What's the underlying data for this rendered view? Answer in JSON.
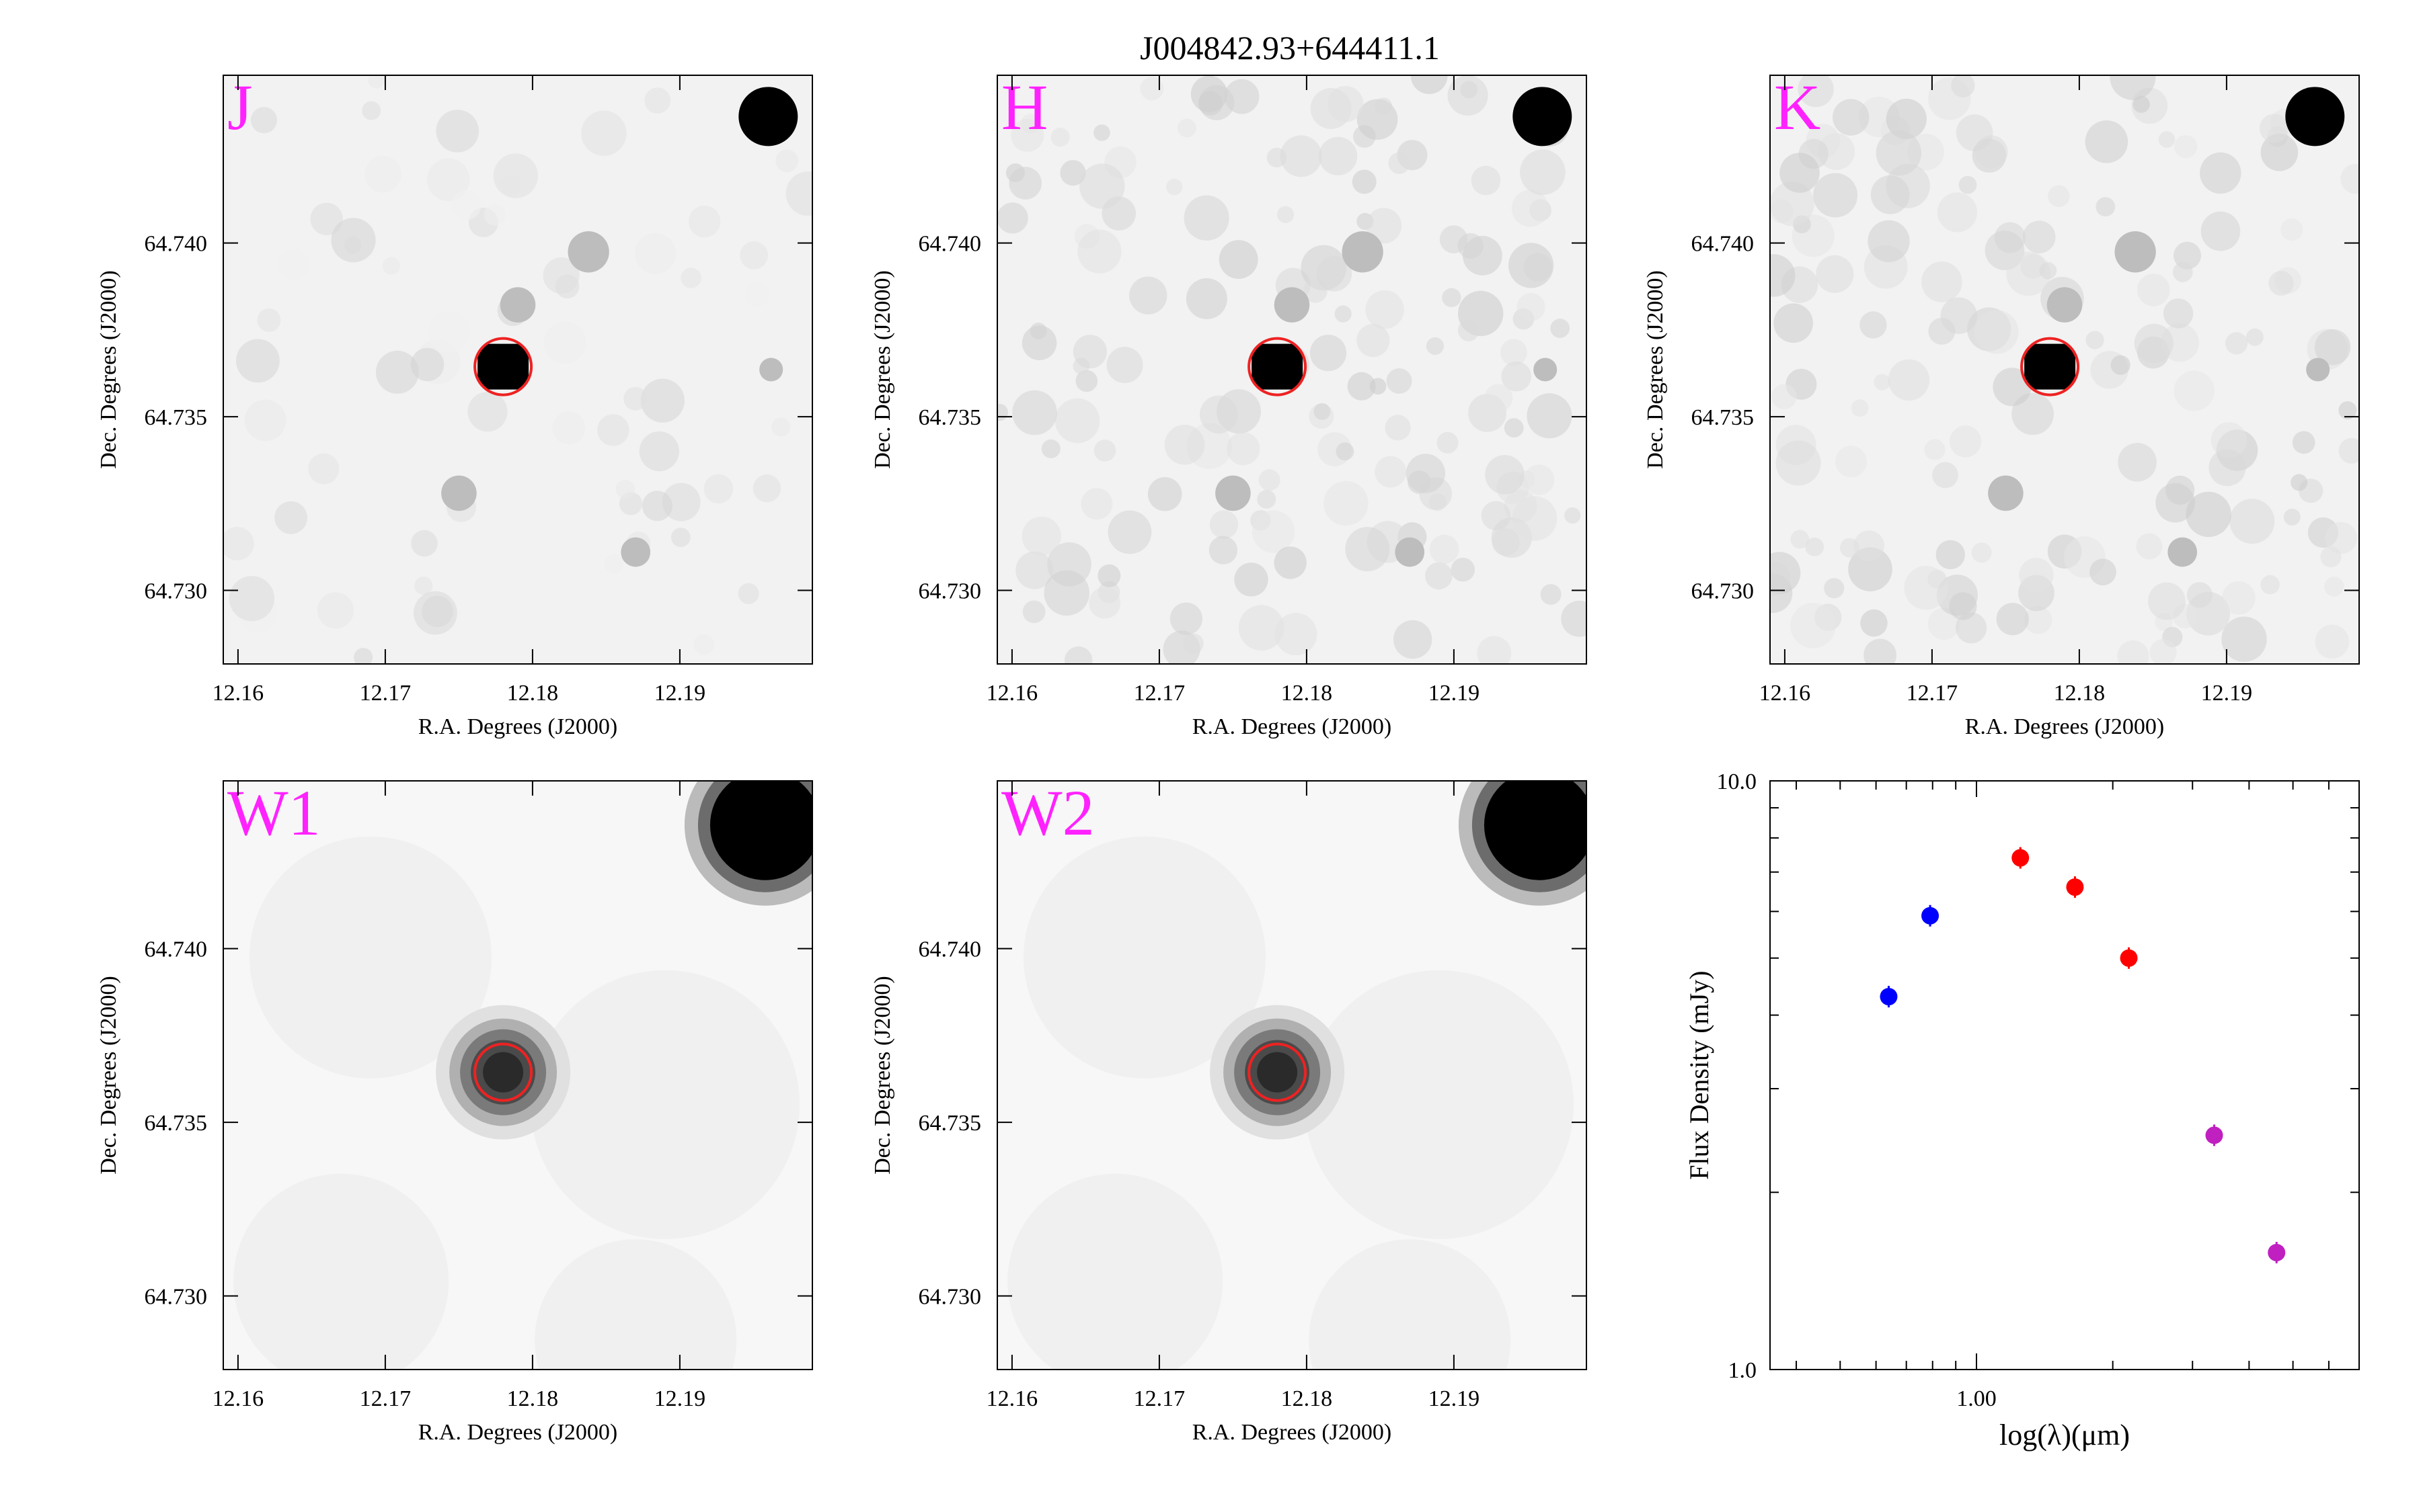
{
  "title": "J004842.93+644411.1",
  "colors": {
    "marker_circle": "#ee2222",
    "band_label": "#ff22ff",
    "sed_2mass": "#ff0000",
    "sed_wise": "#c020c0",
    "sed_blue": "#0000ff"
  },
  "panels": [
    {
      "band": "J",
      "xlabel": "R.A. Degrees (J2000)",
      "ylabel": "Dec. Degrees (J2000)",
      "xticks": [
        "12.16",
        "12.17",
        "12.18",
        "12.19"
      ],
      "yticks": [
        "64.740",
        "64.735",
        "64.730"
      ]
    },
    {
      "band": "H",
      "xlabel": "R.A. Degrees (J2000)",
      "ylabel": "Dec. Degrees (J2000)",
      "xticks": [
        "12.16",
        "12.17",
        "12.18",
        "12.19"
      ],
      "yticks": [
        "64.740",
        "64.735",
        "64.730"
      ]
    },
    {
      "band": "K",
      "xlabel": "R.A. Degrees (J2000)",
      "ylabel": "Dec. Degrees (J2000)",
      "xticks": [
        "12.16",
        "12.17",
        "12.18",
        "12.19"
      ],
      "yticks": [
        "64.740",
        "64.735",
        "64.730"
      ]
    },
    {
      "band": "W1",
      "xlabel": "R.A. Degrees (J2000)",
      "ylabel": "Dec. Degrees (J2000)",
      "xticks": [
        "12.16",
        "12.17",
        "12.18",
        "12.19"
      ],
      "yticks": [
        "64.740",
        "64.735",
        "64.730"
      ]
    },
    {
      "band": "W2",
      "xlabel": "R.A. Degrees (J2000)",
      "ylabel": "Dec. Degrees (J2000)",
      "xticks": [
        "12.16",
        "12.17",
        "12.18",
        "12.19"
      ],
      "yticks": [
        "64.740",
        "64.735",
        "64.730"
      ]
    }
  ],
  "chart_data": {
    "type": "scatter",
    "xlabel": "log(λ)(μm)",
    "ylabel": "Flux Density (mJy)",
    "xscale": "log",
    "yscale": "log",
    "xlim": [
      0.35,
      7.0
    ],
    "ylim": [
      1.0,
      10.0
    ],
    "xticks": [
      "1.00"
    ],
    "yticks": [
      "1.0",
      "10.0"
    ],
    "series": [
      {
        "color": "#0000ff",
        "x": [
          0.64,
          0.79
        ],
        "y": [
          4.3,
          5.9
        ]
      },
      {
        "color": "#ff0000",
        "x": [
          1.25,
          1.65,
          2.17
        ],
        "y": [
          7.4,
          6.6,
          5.0
        ]
      },
      {
        "color": "#c020c0",
        "x": [
          3.35,
          4.6
        ],
        "y": [
          2.5,
          1.58
        ]
      }
    ]
  }
}
